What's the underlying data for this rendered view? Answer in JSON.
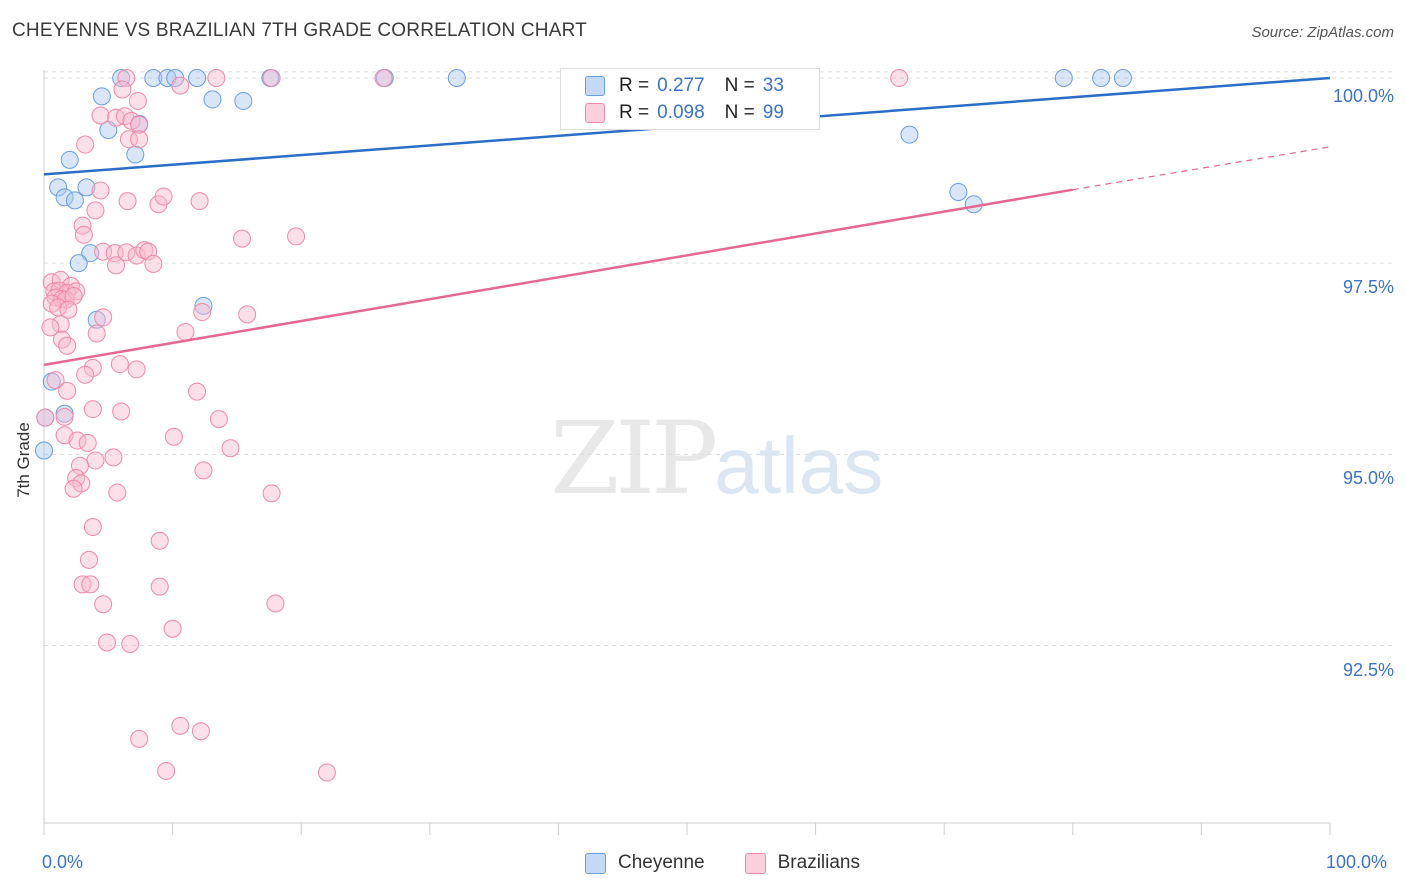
{
  "title": "CHEYENNE VS BRAZILIAN 7TH GRADE CORRELATION CHART",
  "source": "Source: ZipAtlas.com",
  "watermark": {
    "zip": "ZIP",
    "atlas": "atlas"
  },
  "legend_top": {
    "rows": [
      {
        "r_label": "R =",
        "r_value": "0.277",
        "n_label": "N =",
        "n_value": "33",
        "color": "#aac8f0"
      },
      {
        "r_label": "R =",
        "r_value": "0.098",
        "n_label": "N =",
        "n_value": "99",
        "color": "#f8b8cc"
      }
    ]
  },
  "legend_bottom": [
    {
      "label": "Cheyenne",
      "color": "#aac8f0"
    },
    {
      "label": "Brazilians",
      "color": "#f8b8cc"
    }
  ],
  "chart_data": {
    "type": "scatter",
    "title": "CHEYENNE VS BRAZILIAN 7TH GRADE CORRELATION CHART",
    "xlabel": "",
    "ylabel": "7th Grade",
    "xlim": [
      0,
      100
    ],
    "ylim": [
      90.0,
      100.0
    ],
    "x_tick_labels": [
      "0.0%",
      "100.0%"
    ],
    "y_ticks": [
      92.5,
      95.0,
      97.5,
      100.0
    ],
    "y_tick_labels": [
      "92.5%",
      "95.0%",
      "97.5%",
      "100.0%"
    ],
    "series": [
      {
        "name": "Cheyenne",
        "color": "#6a9ee0",
        "fill": "#aac8f0",
        "line_color": "#2a6ec8",
        "trend": {
          "x0": 0,
          "y0": 98.66,
          "x1": 100,
          "y1": 99.92
        },
        "points": [
          [
            6.0,
            99.92
          ],
          [
            8.5,
            99.92
          ],
          [
            9.6,
            99.92
          ],
          [
            10.2,
            99.92
          ],
          [
            11.9,
            99.92
          ],
          [
            17.6,
            99.92
          ],
          [
            26.5,
            99.92
          ],
          [
            32.1,
            99.92
          ],
          [
            79.3,
            99.92
          ],
          [
            82.2,
            99.92
          ],
          [
            83.9,
            99.92
          ],
          [
            4.5,
            99.68
          ],
          [
            13.1,
            99.64
          ],
          [
            15.5,
            99.62
          ],
          [
            7.4,
            99.32
          ],
          [
            5.0,
            99.24
          ],
          [
            7.1,
            98.92
          ],
          [
            2.0,
            98.85
          ],
          [
            67.3,
            99.18
          ],
          [
            1.1,
            98.49
          ],
          [
            1.6,
            98.36
          ],
          [
            2.4,
            98.32
          ],
          [
            3.3,
            98.49
          ],
          [
            71.1,
            98.43
          ],
          [
            72.3,
            98.27
          ],
          [
            3.6,
            97.63
          ],
          [
            2.7,
            97.5
          ],
          [
            12.4,
            96.94
          ],
          [
            4.1,
            96.76
          ],
          [
            0.6,
            95.95
          ],
          [
            0.0,
            95.05
          ],
          [
            0.1,
            95.48
          ],
          [
            1.6,
            95.53
          ]
        ]
      },
      {
        "name": "Brazilians",
        "color": "#ee8aa8",
        "fill": "#f8b8cc",
        "line_color": "#e46890",
        "trend": {
          "x0": 0,
          "y0": 96.17,
          "x1": 80,
          "y1": 98.46
        },
        "trend_dashed": {
          "x0": 80,
          "y0": 98.46,
          "x1": 100,
          "y1": 99.02
        },
        "points": [
          [
            6.4,
            99.92
          ],
          [
            13.4,
            99.92
          ],
          [
            17.7,
            99.92
          ],
          [
            26.4,
            99.92
          ],
          [
            66.5,
            99.92
          ],
          [
            10.6,
            99.82
          ],
          [
            6.1,
            99.77
          ],
          [
            7.3,
            99.62
          ],
          [
            4.4,
            99.43
          ],
          [
            5.6,
            99.4
          ],
          [
            6.3,
            99.42
          ],
          [
            6.8,
            99.36
          ],
          [
            7.4,
            99.31
          ],
          [
            6.6,
            99.12
          ],
          [
            7.4,
            99.12
          ],
          [
            3.2,
            99.05
          ],
          [
            4.4,
            98.45
          ],
          [
            6.5,
            98.31
          ],
          [
            8.9,
            98.27
          ],
          [
            9.3,
            98.37
          ],
          [
            12.1,
            98.31
          ],
          [
            4.0,
            98.19
          ],
          [
            3.0,
            97.99
          ],
          [
            3.1,
            97.87
          ],
          [
            15.4,
            97.82
          ],
          [
            19.6,
            97.85
          ],
          [
            4.6,
            97.65
          ],
          [
            5.5,
            97.63
          ],
          [
            6.4,
            97.64
          ],
          [
            7.2,
            97.6
          ],
          [
            7.8,
            97.67
          ],
          [
            8.1,
            97.65
          ],
          [
            8.5,
            97.49
          ],
          [
            5.6,
            97.47
          ],
          [
            0.6,
            97.25
          ],
          [
            1.3,
            97.28
          ],
          [
            2.1,
            97.2
          ],
          [
            0.8,
            97.13
          ],
          [
            1.2,
            97.14
          ],
          [
            1.8,
            97.11
          ],
          [
            2.5,
            97.13
          ],
          [
            0.9,
            97.05
          ],
          [
            1.4,
            97.03
          ],
          [
            1.7,
            97.02
          ],
          [
            2.3,
            97.07
          ],
          [
            0.6,
            96.97
          ],
          [
            1.1,
            96.92
          ],
          [
            1.9,
            96.89
          ],
          [
            12.3,
            96.86
          ],
          [
            15.8,
            96.83
          ],
          [
            4.6,
            96.79
          ],
          [
            1.3,
            96.7
          ],
          [
            11.0,
            96.6
          ],
          [
            4.1,
            96.58
          ],
          [
            0.5,
            96.66
          ],
          [
            1.4,
            96.5
          ],
          [
            1.8,
            96.42
          ],
          [
            5.9,
            96.18
          ],
          [
            7.2,
            96.11
          ],
          [
            3.8,
            96.13
          ],
          [
            3.2,
            96.04
          ],
          [
            0.9,
            95.97
          ],
          [
            1.8,
            95.83
          ],
          [
            11.9,
            95.82
          ],
          [
            3.8,
            95.59
          ],
          [
            6.0,
            95.56
          ],
          [
            1.6,
            95.49
          ],
          [
            13.6,
            95.46
          ],
          [
            0.1,
            95.48
          ],
          [
            1.6,
            95.25
          ],
          [
            2.6,
            95.18
          ],
          [
            3.4,
            95.15
          ],
          [
            10.1,
            95.23
          ],
          [
            14.5,
            95.08
          ],
          [
            5.4,
            94.96
          ],
          [
            4.0,
            94.92
          ],
          [
            2.8,
            94.85
          ],
          [
            12.4,
            94.79
          ],
          [
            2.5,
            94.69
          ],
          [
            2.9,
            94.62
          ],
          [
            2.3,
            94.55
          ],
          [
            5.7,
            94.5
          ],
          [
            17.7,
            94.49
          ],
          [
            3.8,
            94.05
          ],
          [
            9.0,
            93.87
          ],
          [
            3.5,
            93.62
          ],
          [
            3.0,
            93.3
          ],
          [
            3.6,
            93.3
          ],
          [
            9.0,
            93.27
          ],
          [
            4.6,
            93.04
          ],
          [
            18.0,
            93.05
          ],
          [
            10.0,
            92.72
          ],
          [
            4.9,
            92.54
          ],
          [
            6.7,
            92.52
          ],
          [
            10.6,
            91.45
          ],
          [
            12.2,
            91.38
          ],
          [
            7.4,
            91.28
          ],
          [
            9.5,
            90.86
          ],
          [
            22.0,
            90.84
          ]
        ]
      }
    ]
  }
}
